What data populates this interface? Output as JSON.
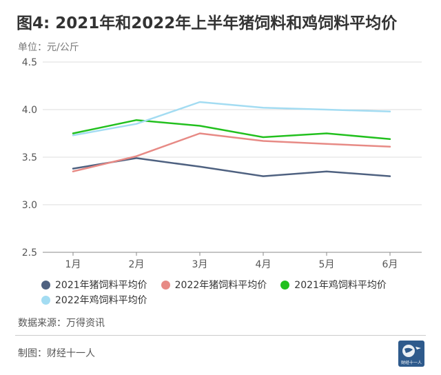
{
  "title": "图4: 2021年和2022年上半年猪饲料和鸡饲料平均价",
  "unit_label": "单位：元/公斤",
  "source": "数据来源：万得资讯",
  "credit": "制图：财经十一人",
  "logo_text": "财经十一人",
  "chart_data": {
    "type": "line",
    "categories": [
      "1月",
      "2月",
      "3月",
      "4月",
      "5月",
      "6月"
    ],
    "ylim": [
      2.5,
      4.5
    ],
    "yticks": [
      "2.5",
      "3.0",
      "3.5",
      "4.0",
      "4.5"
    ],
    "grid": true,
    "legend_position": "bottom",
    "series": [
      {
        "name": "2021年猪饲料平均价",
        "color": "#4e6180",
        "values": [
          3.38,
          3.49,
          3.4,
          3.3,
          3.35,
          3.3
        ]
      },
      {
        "name": "2022年猪饲料平均价",
        "color": "#e78a85",
        "values": [
          3.35,
          3.51,
          3.75,
          3.67,
          3.64,
          3.61
        ]
      },
      {
        "name": "2021年鸡饲料平均价",
        "color": "#22c01e",
        "values": [
          3.75,
          3.89,
          3.83,
          3.71,
          3.75,
          3.69
        ]
      },
      {
        "name": "2022年鸡饲料平均价",
        "color": "#a3dcf2",
        "values": [
          3.73,
          3.85,
          4.08,
          4.02,
          4.0,
          3.98
        ]
      }
    ]
  }
}
